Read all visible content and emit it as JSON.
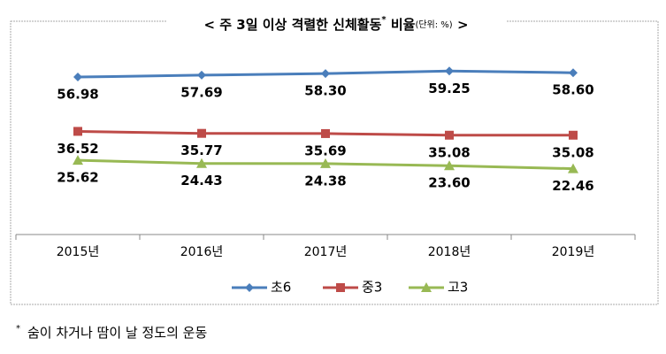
{
  "chart_data": {
    "type": "line",
    "title": "< 주 3일 이상 격렬한 신체활동",
    "title_mark": "*",
    "title_rest": " 비율",
    "unit": "(단위: %)",
    "title_end": " >",
    "footnote_mark": "*",
    "footnote": "숨이 차거나 땀이 날 정도의 운동",
    "categories": [
      "2015년",
      "2016년",
      "2017년",
      "2018년",
      "2019년"
    ],
    "ylim": [
      0,
      76
    ],
    "series": [
      {
        "name": "초6",
        "color": "#4a7ebb",
        "marker": "diamond",
        "values": [
          56.98,
          57.69,
          58.3,
          59.25,
          58.6
        ],
        "value_labels": [
          "56.98",
          "57.69",
          "58.30",
          "59.25",
          "58.60"
        ]
      },
      {
        "name": "중3",
        "color": "#be4b48",
        "marker": "square",
        "values": [
          36.52,
          35.77,
          35.69,
          35.08,
          35.08
        ]
      },
      {
        "name": "고3",
        "color": "#98b954",
        "marker": "triangle",
        "values": [
          25.62,
          24.43,
          24.38,
          23.6,
          22.46
        ],
        "value_labels": [
          "25.62",
          "24.43",
          "24.38",
          "23.60",
          "22.46"
        ]
      }
    ]
  }
}
